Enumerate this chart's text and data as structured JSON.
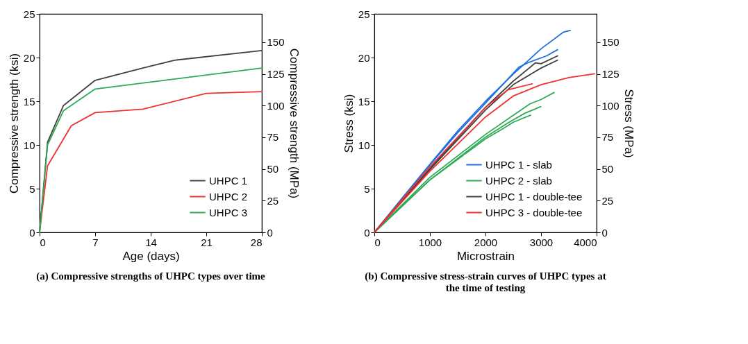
{
  "chart_data": [
    {
      "type": "line",
      "title": "(a) Compressive strengths of UHPC types over time",
      "xlabel": "Age (days)",
      "ylabel": "Compressive strength (ksi)",
      "y2label": "Compressive strength (MPa)",
      "xlim": [
        0,
        28
      ],
      "xticks": [
        0,
        7,
        14,
        21,
        28
      ],
      "ylim": [
        0,
        25
      ],
      "yticks": [
        0,
        5,
        10,
        15,
        20,
        25
      ],
      "y2lim": [
        0,
        172.37
      ],
      "y2ticks": [
        0,
        25,
        50,
        75,
        100,
        125,
        150
      ],
      "grid": false,
      "legend": "bottom right",
      "series": [
        {
          "name": "UHPC 1",
          "color": "#404040",
          "x": [
            0,
            1,
            3,
            7,
            13,
            17,
            28
          ],
          "values": [
            0,
            10.3,
            14.5,
            17.4,
            18.8,
            19.7,
            20.8
          ]
        },
        {
          "name": "UHPC 2",
          "color": "#f03030",
          "x": [
            0,
            1,
            4,
            7,
            13,
            21,
            28
          ],
          "values": [
            0,
            7.6,
            12.2,
            13.7,
            14.1,
            15.9,
            16.1
          ]
        },
        {
          "name": "UHPC 3",
          "color": "#2eaa55",
          "x": [
            0,
            1,
            3,
            7,
            28
          ],
          "values": [
            0,
            10.0,
            13.9,
            16.4,
            18.8
          ]
        }
      ]
    },
    {
      "type": "line",
      "title": "(b) Compressive stress-strain curves of UHPC types at the time of testing",
      "xlabel": "Microstrain",
      "ylabel": "Stress (ksi)",
      "y2label": "Stress (MPa)",
      "xlim": [
        0,
        4000
      ],
      "xticks": [
        0,
        1000,
        2000,
        3000,
        4000
      ],
      "ylim": [
        0,
        25
      ],
      "yticks": [
        0,
        5,
        10,
        15,
        20,
        25
      ],
      "y2lim": [
        0,
        172.37
      ],
      "y2ticks": [
        0,
        25,
        50,
        75,
        100,
        125,
        150
      ],
      "grid": false,
      "legend": "bottom right",
      "series": [
        {
          "name": "UHPC 1 - slab",
          "color": "#1f6fe0",
          "x": [
            0,
            500,
            1000,
            1500,
            2000,
            2500,
            3000,
            3400,
            3527
          ],
          "values": [
            0,
            3.9,
            7.8,
            11.6,
            15.0,
            18.1,
            21.0,
            22.9,
            23.1
          ]
        },
        {
          "color": "#1f6fe0",
          "x": [
            0,
            500,
            1000,
            1500,
            2000,
            2500,
            2600,
            2800,
            3100,
            3298
          ],
          "values": [
            0,
            3.9,
            7.7,
            11.4,
            14.8,
            18.2,
            18.9,
            19.5,
            20.2,
            20.9
          ]
        },
        {
          "name": "UHPC 2 - slab",
          "color": "#2eaa55",
          "x": [
            0,
            1000,
            2000,
            2500,
            2800,
            3000,
            3236
          ],
          "values": [
            0,
            6.3,
            11.2,
            13.4,
            14.7,
            15.2,
            16.0
          ]
        },
        {
          "color": "#2eaa55",
          "x": [
            0,
            1000,
            2000,
            2400,
            2700,
            2995
          ],
          "values": [
            0,
            6.0,
            10.9,
            12.5,
            13.6,
            14.4
          ]
        },
        {
          "color": "#2eaa55",
          "x": [
            0,
            1000,
            2000,
            2300,
            2500,
            2812
          ],
          "values": [
            0,
            6.0,
            10.7,
            11.8,
            12.6,
            13.4
          ]
        },
        {
          "name": "UHPC 1 - double-tee",
          "color": "#404040",
          "x": [
            0,
            1000,
            2000,
            2500,
            2900,
            3000,
            3298
          ],
          "values": [
            0,
            7.3,
            14.3,
            17.3,
            19.4,
            19.3,
            20.2
          ]
        },
        {
          "color": "#404040",
          "x": [
            0,
            1000,
            2000,
            2500,
            3000,
            3298
          ],
          "values": [
            0,
            7.2,
            14.0,
            16.9,
            18.8,
            19.7
          ]
        },
        {
          "name": "UHPC 3 - double-tee",
          "color": "#f03030",
          "x": [
            0,
            1000,
            2000,
            2400,
            2841
          ],
          "values": [
            0,
            7.5,
            14.3,
            16.3,
            17.0
          ]
        },
        {
          "color": "#f03030",
          "x": [
            0,
            1000,
            2000,
            2500,
            3000,
            3500,
            3963
          ],
          "values": [
            0,
            7.0,
            13.2,
            15.6,
            16.9,
            17.7,
            18.15
          ]
        }
      ]
    }
  ]
}
